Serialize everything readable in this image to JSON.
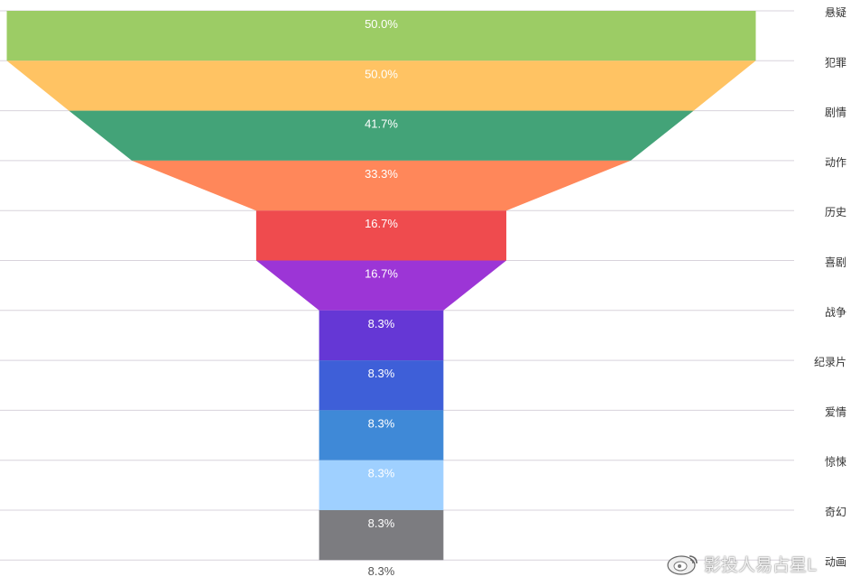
{
  "chart_data": {
    "type": "funnel",
    "categories": [
      "悬疑",
      "犯罪",
      "剧情",
      "动作",
      "历史",
      "喜剧",
      "战争",
      "纪录片",
      "爱情",
      "惊悚",
      "奇幻",
      "动画"
    ],
    "values": [
      50.0,
      50.0,
      41.7,
      33.3,
      16.7,
      16.7,
      8.3,
      8.3,
      8.3,
      8.3,
      8.3,
      8.3
    ],
    "value_labels": [
      "50.0%",
      "50.0%",
      "41.7%",
      "33.3%",
      "16.7%",
      "16.7%",
      "8.3%",
      "8.3%",
      "8.3%",
      "8.3%",
      "8.3%",
      "8.3%"
    ],
    "colors": [
      "#9ccc65",
      "#ffc363",
      "#43a378",
      "#ff875a",
      "#ef4b4e",
      "#9c35d6",
      "#6537d5",
      "#3e5fd8",
      "#3f89d7",
      "#9fd0ff",
      "#7c7c80",
      "#7c7c80"
    ],
    "title": "",
    "xlabel": "",
    "ylabel": "",
    "legend_position": "right",
    "grid": true
  },
  "watermark": {
    "text": "影投人易占星L",
    "icon": "weibo-icon"
  }
}
